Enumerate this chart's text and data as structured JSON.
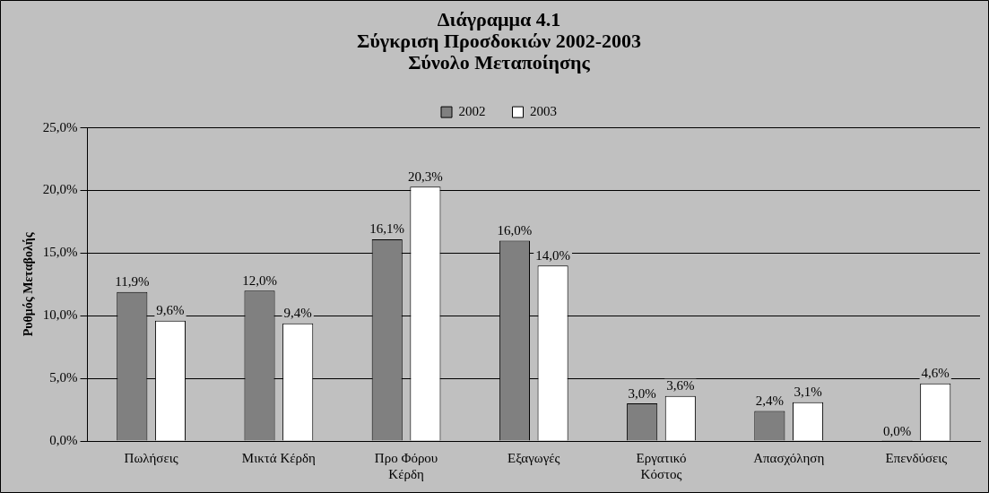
{
  "chart_data": {
    "type": "bar",
    "title": "Διάγραμμα 4.1\nΣύγκριση Προσδοκιών 2002-2003\nΣύνολο Μεταποίησης",
    "ylabel": "Ρυθμός Μεταβολής",
    "categories": [
      "Πωλήσεις",
      "Μικτά Κέρδη",
      "Προ Φόρου\nΚέρδη",
      "Εξαγωγές",
      "Εργατικό\nΚόστος",
      "Απασχόληση",
      "Επενδύσεις"
    ],
    "series": [
      {
        "name": "2002",
        "color": "#808080",
        "values": [
          11.9,
          12.0,
          16.1,
          16.0,
          3.0,
          2.4,
          0.0
        ],
        "value_labels": [
          "11,9%",
          "12,0%",
          "16,1%",
          "16,0%",
          "3,0%",
          "2,4%",
          "0,0%"
        ]
      },
      {
        "name": "2003",
        "color": "#ffffff",
        "values": [
          9.6,
          9.4,
          20.3,
          14.0,
          3.6,
          3.1,
          4.6
        ],
        "value_labels": [
          "9,6%",
          "9,4%",
          "20,3%",
          "14,0%",
          "3,6%",
          "3,1%",
          "4,6%"
        ]
      }
    ],
    "ylim": [
      0,
      25
    ],
    "yticks": [
      {
        "value": 0,
        "label": "0,0%"
      },
      {
        "value": 5,
        "label": "5,0%"
      },
      {
        "value": 10,
        "label": "10,0%"
      },
      {
        "value": 15,
        "label": "15,0%"
      },
      {
        "value": 20,
        "label": "20,0%"
      },
      {
        "value": 25,
        "label": "25,0%"
      }
    ],
    "grid": "y",
    "legend": "top"
  }
}
